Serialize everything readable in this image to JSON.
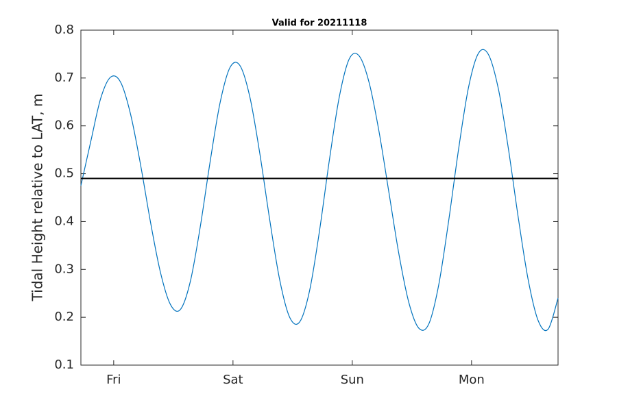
{
  "chart_data": {
    "type": "line",
    "title": "Valid for 20211118",
    "ylabel": "Tidal Height relative to LAT, m",
    "x": [
      0,
      2,
      4,
      6,
      8,
      10,
      12,
      14,
      16,
      18,
      20,
      22,
      24,
      26,
      28,
      30,
      32,
      34,
      36,
      38,
      40,
      42,
      44,
      46,
      48,
      50,
      52,
      54,
      56,
      58,
      60,
      62,
      64,
      66,
      68,
      70,
      72,
      74,
      76,
      78,
      80,
      82,
      84,
      86,
      88,
      90,
      92,
      94,
      96
    ],
    "series": [
      {
        "color": "#0072bd",
        "values": [
          0.475,
          0.568,
          0.658,
          0.702,
          0.691,
          0.624,
          0.519,
          0.399,
          0.294,
          0.227,
          0.216,
          0.274,
          0.388,
          0.525,
          0.648,
          0.722,
          0.726,
          0.66,
          0.542,
          0.403,
          0.278,
          0.2,
          0.19,
          0.255,
          0.38,
          0.529,
          0.661,
          0.74,
          0.746,
          0.69,
          0.587,
          0.459,
          0.331,
          0.23,
          0.177,
          0.186,
          0.268,
          0.402,
          0.552,
          0.681,
          0.752,
          0.749,
          0.677,
          0.553,
          0.408,
          0.278,
          0.193,
          0.175,
          0.24
        ]
      }
    ],
    "hline": {
      "value": 0.49,
      "color": "#000000"
    },
    "xlim": [
      0,
      96
    ],
    "xticks": [
      {
        "value": 6.6,
        "label": "Fri"
      },
      {
        "value": 30.6,
        "label": "Sat"
      },
      {
        "value": 54.6,
        "label": "Sun"
      },
      {
        "value": 78.6,
        "label": "Mon"
      }
    ],
    "ylim": [
      0.1,
      0.8
    ],
    "yticks": [
      0.1,
      0.2,
      0.3,
      0.4,
      0.5,
      0.6,
      0.7,
      0.8
    ],
    "grid": false
  }
}
